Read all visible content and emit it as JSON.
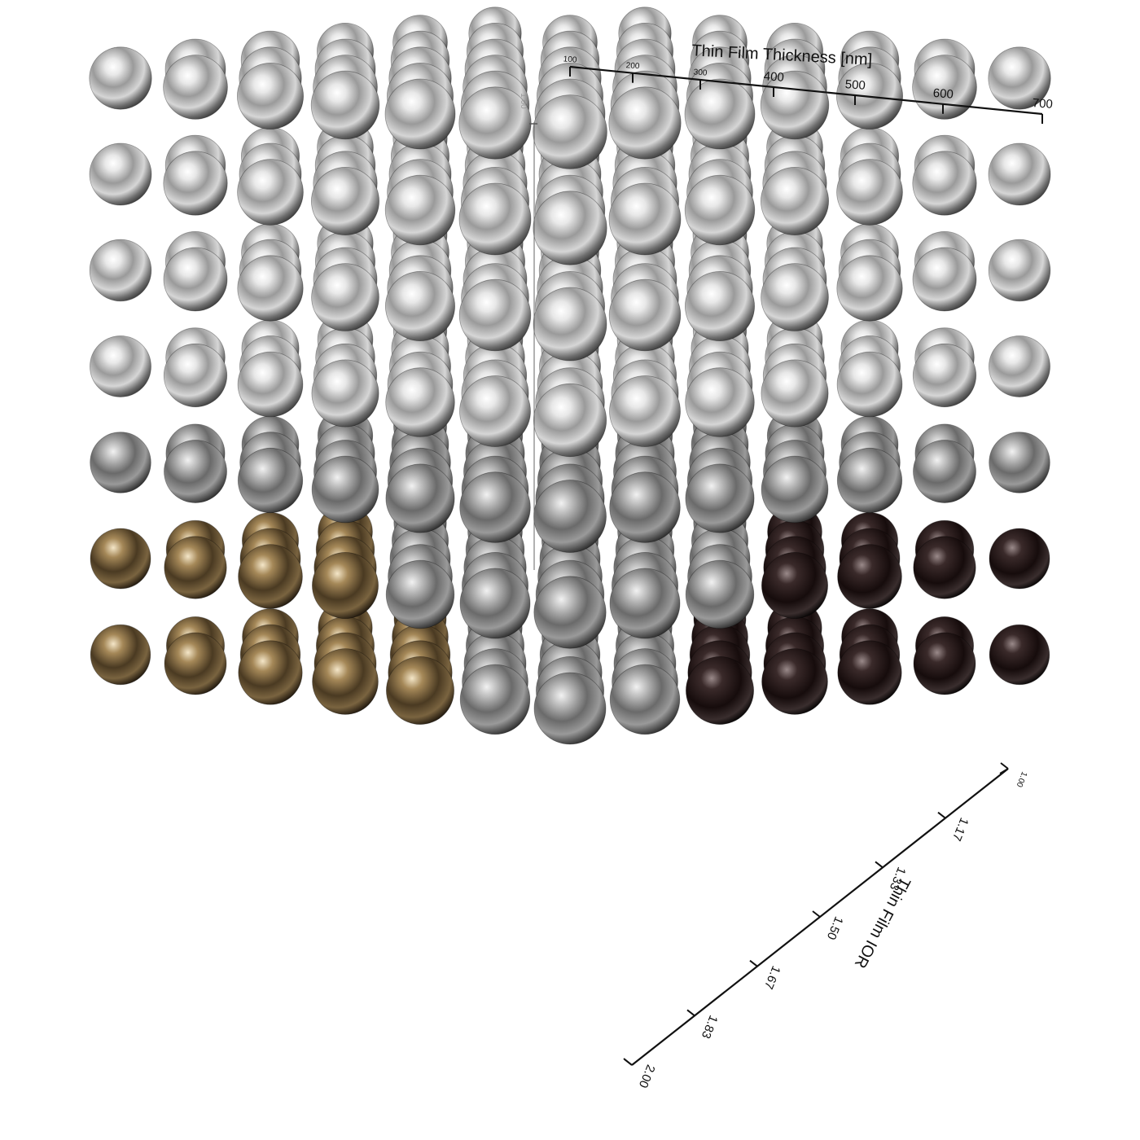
{
  "chart_data": {
    "type": "scatter",
    "render": "3d-sphere-grid",
    "axes": {
      "thickness": {
        "title": "Thin Film Thickness [nm]",
        "ticks": [
          "100",
          "200",
          "300",
          "400",
          "500",
          "600",
          "700"
        ],
        "range": [
          100,
          700
        ]
      },
      "ior": {
        "title": "Thin Film IOR",
        "ticks": [
          "1.00",
          "1.17",
          "1.33",
          "1.50",
          "1.67",
          "1.83",
          "2.00"
        ],
        "range": [
          1.0,
          2.0
        ]
      },
      "vertical": {
        "ticks": [
          "1.00"
        ]
      }
    },
    "grid": {
      "thickness_steps": 7,
      "ior_steps": 7,
      "vertical_steps": 7
    },
    "colors": {
      "silver": "#c8c8c8",
      "bronze": "#8a6a3a",
      "dark": "#1a1010",
      "axis": "#111111"
    }
  }
}
